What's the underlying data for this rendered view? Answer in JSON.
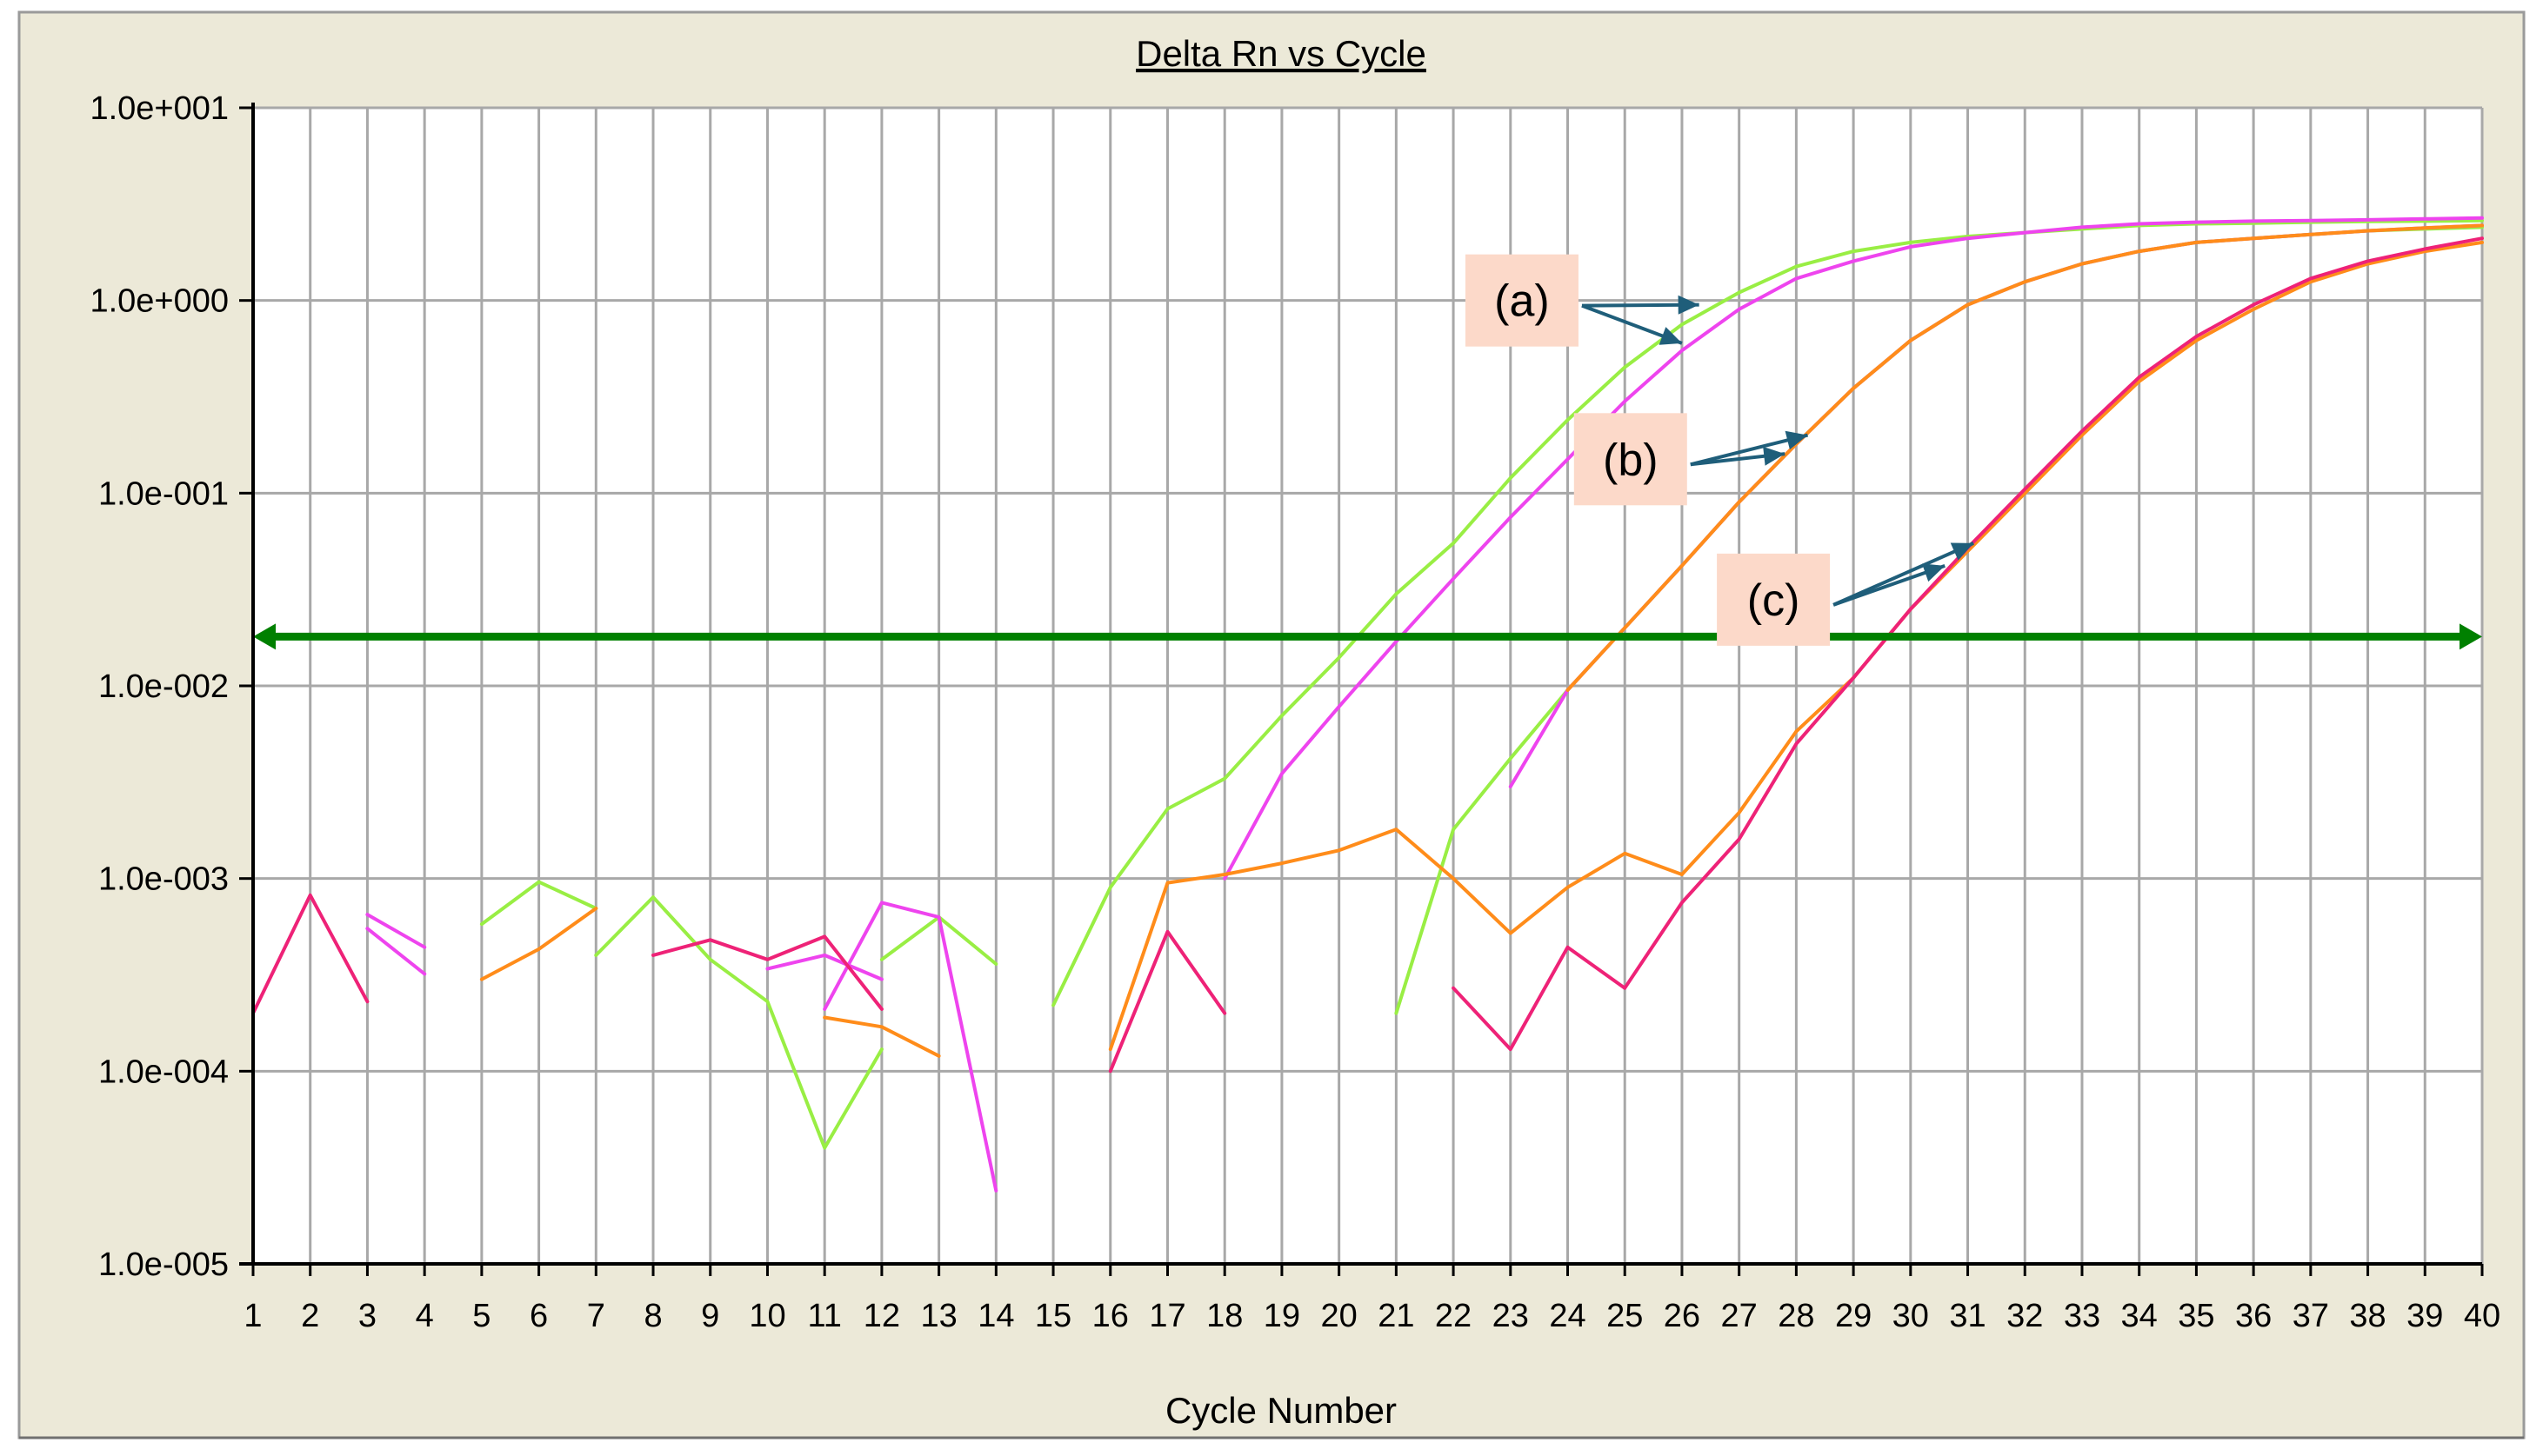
{
  "colors": {
    "panel": "#ece9d8",
    "plot_bg": "#ffffff",
    "grid": "#a8a8a8",
    "threshold": "#008000",
    "annotation_bg": "#fcd9c9",
    "arrow": "#1f5e7a"
  },
  "chart_data": {
    "type": "line",
    "title": "Delta Rn vs Cycle",
    "xlabel": "Cycle Number",
    "ylabel": "",
    "x_ticks": [
      1,
      2,
      3,
      4,
      5,
      6,
      7,
      8,
      9,
      10,
      11,
      12,
      13,
      14,
      15,
      16,
      17,
      18,
      19,
      20,
      21,
      22,
      23,
      24,
      25,
      26,
      27,
      28,
      29,
      30,
      31,
      32,
      33,
      34,
      35,
      36,
      37,
      38,
      39,
      40
    ],
    "xlim": [
      1,
      40
    ],
    "yscale": "log",
    "ylim": [
      1e-05,
      10
    ],
    "y_tick_values": [
      10,
      1,
      0.1,
      0.01,
      0.001,
      0.0001,
      1e-05
    ],
    "y_tick_labels": [
      "1.0e+001",
      "1.0e+000",
      "1.0e-001",
      "1.0e-002",
      "1.0e-003",
      "1.0e-004",
      "1.0e-005"
    ],
    "grid": true,
    "legend": "none",
    "threshold": 0.018,
    "series": [
      {
        "color": "#99ee44",
        "segments": [
          [
            [
              5,
              0.00058
            ],
            [
              6,
              0.00096
            ],
            [
              7,
              0.0007
            ]
          ],
          [
            [
              7,
              0.0004
            ],
            [
              8,
              0.0008
            ],
            [
              9,
              0.00038
            ],
            [
              10,
              0.00023
            ],
            [
              11,
              4e-05
            ],
            [
              12,
              0.00013
            ]
          ],
          [
            [
              12,
              0.00038
            ],
            [
              13,
              0.00063
            ],
            [
              14,
              0.00036
            ]
          ],
          [
            [
              15,
              0.00022
            ],
            [
              16,
              0.0009
            ],
            [
              17,
              0.0023
            ],
            [
              18,
              0.0033
            ],
            [
              19,
              0.007
            ],
            [
              20,
              0.014
            ],
            [
              21,
              0.03
            ],
            [
              22,
              0.055
            ],
            [
              23,
              0.12
            ],
            [
              24,
              0.24
            ],
            [
              25,
              0.45
            ],
            [
              26,
              0.75
            ],
            [
              27,
              1.1
            ],
            [
              28,
              1.5
            ],
            [
              29,
              1.8
            ],
            [
              30,
              2.0
            ],
            [
              31,
              2.15
            ],
            [
              32,
              2.25
            ],
            [
              33,
              2.35
            ],
            [
              34,
              2.45
            ],
            [
              35,
              2.5
            ],
            [
              36,
              2.52
            ],
            [
              37,
              2.55
            ],
            [
              38,
              2.57
            ],
            [
              39,
              2.58
            ],
            [
              40,
              2.6
            ]
          ],
          [
            [
              21,
              0.0002
            ],
            [
              22,
              0.0018
            ],
            [
              23,
              0.0042
            ],
            [
              24,
              0.0095
            ],
            [
              25,
              0.02
            ],
            [
              26,
              0.042
            ],
            [
              27,
              0.09
            ],
            [
              28,
              0.18
            ],
            [
              29,
              0.35
            ],
            [
              30,
              0.62
            ],
            [
              31,
              0.95
            ],
            [
              32,
              1.25
            ],
            [
              33,
              1.55
            ],
            [
              34,
              1.8
            ],
            [
              35,
              2.0
            ],
            [
              36,
              2.1
            ],
            [
              37,
              2.2
            ],
            [
              38,
              2.3
            ],
            [
              39,
              2.35
            ],
            [
              40,
              2.4
            ]
          ]
        ]
      },
      {
        "color": "#ee44ee",
        "segments": [
          [
            [
              3,
              0.00055
            ],
            [
              4,
              0.00032
            ]
          ],
          [
            [
              3,
              0.00065
            ],
            [
              4,
              0.00044
            ]
          ],
          [
            [
              10,
              0.00034
            ],
            [
              11,
              0.0004
            ],
            [
              12,
              0.0003
            ]
          ],
          [
            [
              11,
              0.00021
            ],
            [
              12,
              0.00075
            ],
            [
              13,
              0.00063
            ],
            [
              14,
              2.4e-05
            ]
          ],
          [
            [
              18,
              0.001
            ],
            [
              19,
              0.0035
            ],
            [
              20,
              0.0078
            ],
            [
              21,
              0.017
            ],
            [
              22,
              0.036
            ],
            [
              23,
              0.075
            ],
            [
              24,
              0.15
            ],
            [
              25,
              0.3
            ],
            [
              26,
              0.55
            ],
            [
              27,
              0.9
            ],
            [
              28,
              1.3
            ],
            [
              29,
              1.6
            ],
            [
              30,
              1.9
            ],
            [
              31,
              2.1
            ],
            [
              32,
              2.25
            ],
            [
              33,
              2.4
            ],
            [
              34,
              2.5
            ],
            [
              35,
              2.55
            ],
            [
              36,
              2.58
            ],
            [
              37,
              2.6
            ],
            [
              38,
              2.62
            ],
            [
              39,
              2.65
            ],
            [
              40,
              2.68
            ]
          ],
          [
            [
              23,
              0.003
            ],
            [
              24,
              0.0095
            ],
            [
              25,
              0.02
            ],
            [
              26,
              0.042
            ],
            [
              27,
              0.09
            ],
            [
              28,
              0.18
            ],
            [
              29,
              0.35
            ],
            [
              30,
              0.62
            ],
            [
              31,
              0.95
            ],
            [
              32,
              1.25
            ],
            [
              33,
              1.55
            ],
            [
              34,
              1.8
            ],
            [
              35,
              2.0
            ],
            [
              36,
              2.1
            ],
            [
              37,
              2.2
            ],
            [
              38,
              2.3
            ],
            [
              39,
              2.38
            ],
            [
              40,
              2.45
            ]
          ]
        ]
      },
      {
        "color": "#ff8c1a",
        "segments": [
          [
            [
              5,
              0.0003
            ],
            [
              6,
              0.00043
            ],
            [
              7,
              0.0007
            ]
          ],
          [
            [
              11,
              0.00019
            ],
            [
              12,
              0.00017
            ],
            [
              13,
              0.00012
            ]
          ],
          [
            [
              16,
              0.00013
            ],
            [
              17,
              0.00095
            ],
            [
              18,
              0.00105
            ],
            [
              19,
              0.0012
            ],
            [
              20,
              0.0014
            ],
            [
              21,
              0.0018
            ],
            [
              22,
              0.001
            ],
            [
              23,
              0.00052
            ],
            [
              24,
              0.0009
            ],
            [
              25,
              0.00135
            ],
            [
              26,
              0.00105
            ],
            [
              27,
              0.0022
            ],
            [
              28,
              0.0058
            ],
            [
              29,
              0.011
            ],
            [
              30,
              0.025
            ],
            [
              31,
              0.05
            ],
            [
              32,
              0.1
            ],
            [
              33,
              0.2
            ],
            [
              34,
              0.38
            ],
            [
              35,
              0.62
            ],
            [
              36,
              0.9
            ],
            [
              37,
              1.25
            ],
            [
              38,
              1.55
            ],
            [
              39,
              1.8
            ],
            [
              40,
              2.0
            ]
          ],
          [
            [
              24,
              0.0095
            ],
            [
              25,
              0.02
            ],
            [
              26,
              0.042
            ],
            [
              27,
              0.09
            ],
            [
              28,
              0.18
            ],
            [
              29,
              0.35
            ],
            [
              30,
              0.62
            ],
            [
              31,
              0.95
            ],
            [
              32,
              1.25
            ],
            [
              33,
              1.55
            ],
            [
              34,
              1.8
            ],
            [
              35,
              2.0
            ],
            [
              36,
              2.1
            ],
            [
              37,
              2.2
            ],
            [
              38,
              2.3
            ],
            [
              39,
              2.38
            ],
            [
              40,
              2.45
            ]
          ]
        ]
      },
      {
        "color": "#ee2277",
        "segments": [
          [
            [
              1,
              0.0002
            ],
            [
              2,
              0.00082
            ],
            [
              3,
              0.00023
            ]
          ],
          [
            [
              8,
              0.0004
            ],
            [
              9,
              0.00048
            ],
            [
              10,
              0.00038
            ],
            [
              11,
              0.0005
            ],
            [
              12,
              0.00021
            ]
          ],
          [
            [
              16,
              0.0001
            ],
            [
              17,
              0.00053
            ],
            [
              18,
              0.0002
            ]
          ],
          [
            [
              22,
              0.00027
            ],
            [
              23,
              0.00013
            ],
            [
              24,
              0.00044
            ],
            [
              25,
              0.00027
            ],
            [
              26,
              0.00075
            ],
            [
              27,
              0.0016
            ],
            [
              28,
              0.005
            ],
            [
              29,
              0.011
            ],
            [
              30,
              0.025
            ],
            [
              31,
              0.052
            ],
            [
              32,
              0.105
            ],
            [
              33,
              0.21
            ],
            [
              34,
              0.4
            ],
            [
              35,
              0.65
            ],
            [
              36,
              0.95
            ],
            [
              37,
              1.3
            ],
            [
              38,
              1.6
            ],
            [
              39,
              1.85
            ],
            [
              40,
              2.1
            ]
          ]
        ]
      }
    ],
    "annotations": [
      {
        "label": "(a)",
        "at": [
          23.2,
          1.0
        ],
        "arrows": [
          [
            26.3,
            0.95
          ],
          [
            26.0,
            0.6
          ]
        ]
      },
      {
        "label": "(b)",
        "at": [
          25.1,
          0.15
        ],
        "arrows": [
          [
            28.2,
            0.2
          ],
          [
            27.8,
            0.16
          ]
        ]
      },
      {
        "label": "(c)",
        "at": [
          27.6,
          0.028
        ],
        "arrows": [
          [
            31.1,
            0.055
          ],
          [
            30.6,
            0.042
          ]
        ]
      }
    ]
  }
}
